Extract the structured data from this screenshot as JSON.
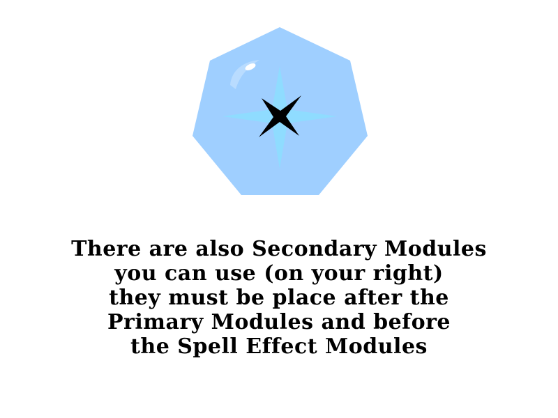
{
  "tutorial": {
    "lines": [
      "There are also Secondary Modules",
      "you can use (on your right)",
      "they must be place after the",
      "Primary Modules and before",
      "the Spell Effect Modules"
    ]
  },
  "module_gem": {
    "icon": "heptagon-gem-icon",
    "colors": {
      "gem_fill": "#9fcfff",
      "glow_star": "#8fdcff",
      "center_star": "#000000",
      "highlight": "#ffffff"
    }
  }
}
